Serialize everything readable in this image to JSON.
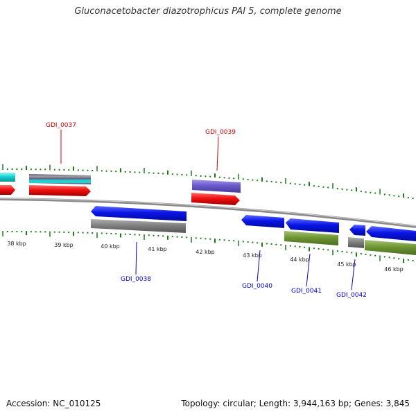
{
  "title": "Gluconacetobacter diazotrophicus PAI 5, complete genome",
  "footer": {
    "accession": "Accession: NC_010125",
    "summary": "Topology: circular; Length: 3,944,163 bp; Genes: 3,845"
  },
  "colors": {
    "forward_label": "#cc0000",
    "reverse_label": "#0000cc",
    "tick": "#1a7a1a",
    "backbone": "#888888"
  },
  "kbp_labels": [
    "38 kbp",
    "39 kbp",
    "40 kbp",
    "41 kbp",
    "42 kbp",
    "43 kbp",
    "44 kbp",
    "45 kbp",
    "46 kbp"
  ],
  "gene_labels": {
    "GDI_0037": "GDI_0037",
    "GDI_0039": "GDI_0039",
    "GDI_0038": "GDI_0038",
    "GDI_0040": "GDI_0040",
    "GDI_0041": "GDI_0041",
    "GDI_0042": "GDI_0042"
  }
}
